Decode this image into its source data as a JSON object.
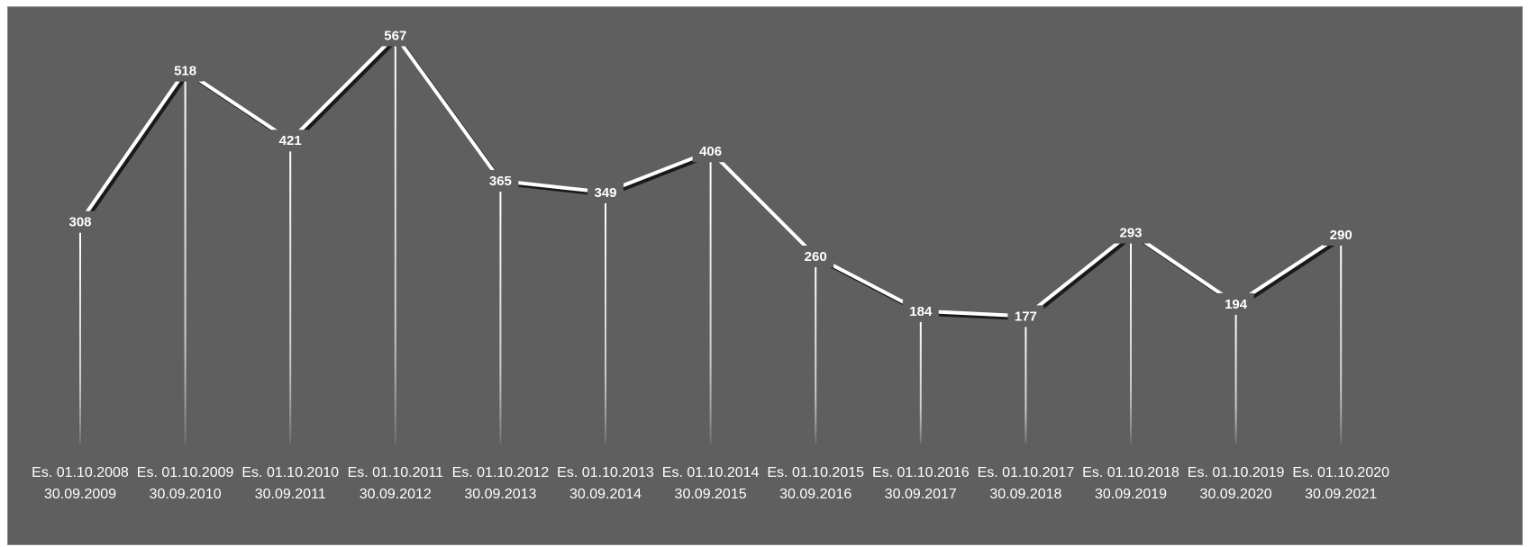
{
  "chart_data": {
    "type": "line",
    "title": "",
    "xlabel": "",
    "ylabel": "",
    "categories": [
      [
        "Es. 01.10.2008",
        "30.09.2009"
      ],
      [
        "Es. 01.10.2009",
        "30.09.2010"
      ],
      [
        "Es. 01.10.2010",
        "30.09.2011"
      ],
      [
        "Es. 01.10.2011",
        "30.09.2012"
      ],
      [
        "Es. 01.10.2012",
        "30.09.2013"
      ],
      [
        "Es. 01.10.2013",
        "30.09.2014"
      ],
      [
        "Es. 01.10.2014",
        "30.09.2015"
      ],
      [
        "Es. 01.10.2015",
        "30.09.2016"
      ],
      [
        "Es. 01.10.2016",
        "30.09.2017"
      ],
      [
        "Es. 01.10.2017",
        "30.09.2018"
      ],
      [
        "Es. 01.10.2018",
        "30.09.2019"
      ],
      [
        "Es. 01.10.2019",
        "30.09.2020"
      ],
      [
        "Es. 01.10.2020",
        "30.09.2021"
      ]
    ],
    "values": [
      308,
      518,
      421,
      567,
      365,
      349,
      406,
      260,
      184,
      177,
      293,
      194,
      290
    ],
    "ylim": [
      0,
      600
    ],
    "grid": false,
    "legend": "none",
    "drop_lines": true,
    "colors": {
      "background": "#5f5f5f",
      "line": "#ffffff",
      "line_shadow": "#1a1a1a",
      "text": "#ffffff"
    }
  }
}
